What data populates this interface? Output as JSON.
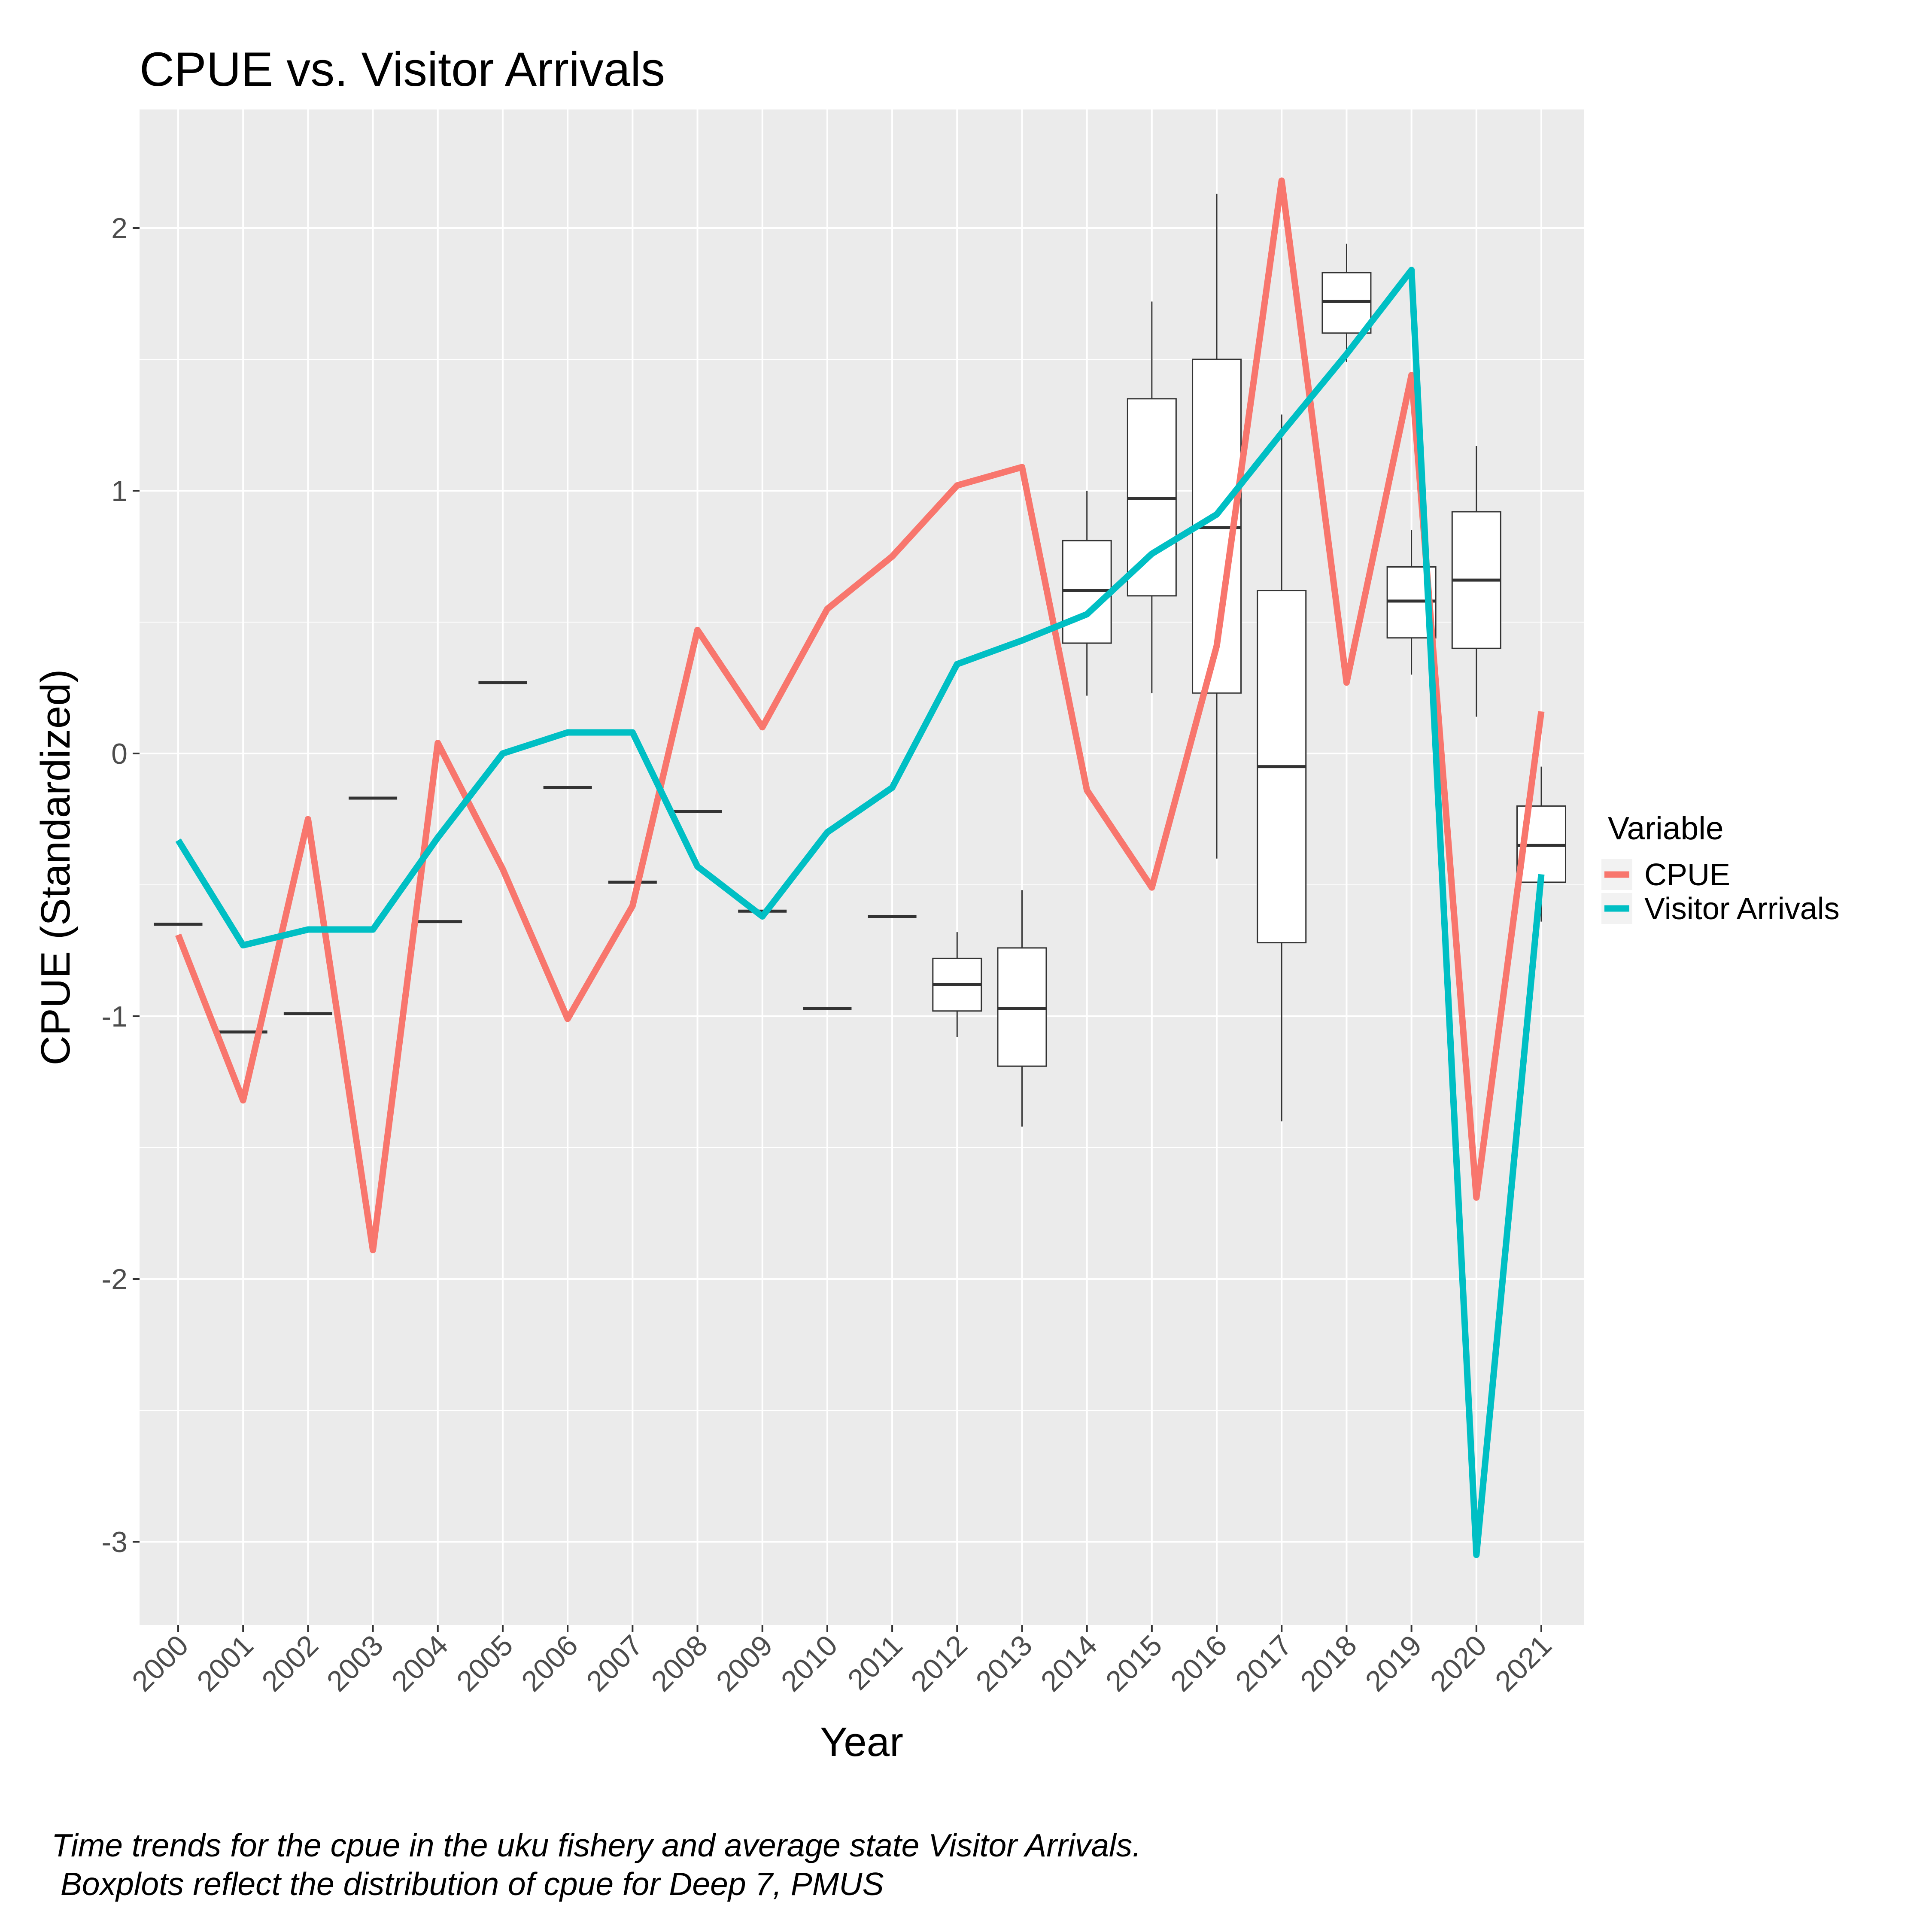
{
  "chart_data": {
    "type": "line",
    "title": "CPUE vs. Visitor Arrivals",
    "xlabel": "Year",
    "ylabel": "CPUE (Standardized)",
    "ylim": [
      -3.3,
      2.45
    ],
    "yticks": [
      "-3",
      "-2",
      "-1",
      "0",
      "1",
      "2"
    ],
    "grid": true,
    "legend_position": "right",
    "legend_title": "Variable",
    "categories": [
      "2000",
      "2001",
      "2002",
      "2003",
      "2004",
      "2005",
      "2006",
      "2007",
      "2008",
      "2009",
      "2010",
      "2011",
      "2012",
      "2013",
      "2014",
      "2015",
      "2016",
      "2017",
      "2018",
      "2019",
      "2020",
      "2021"
    ],
    "series": [
      {
        "name": "CPUE",
        "color": "#F8766D",
        "values": [
          -0.69,
          -1.32,
          -0.25,
          -1.89,
          0.04,
          -0.44,
          -1.01,
          -0.58,
          0.47,
          0.1,
          0.55,
          0.75,
          1.02,
          1.09,
          -0.14,
          -0.51,
          0.41,
          2.18,
          0.27,
          1.44,
          -1.69,
          0.16
        ]
      },
      {
        "name": "Visitor Arrivals",
        "color": "#00BFC4",
        "values": [
          -0.33,
          -0.73,
          -0.67,
          -0.67,
          -0.32,
          0.0,
          0.08,
          0.08,
          -0.43,
          -0.62,
          -0.3,
          -0.13,
          0.34,
          0.43,
          0.53,
          0.76,
          0.91,
          1.22,
          1.52,
          1.84,
          -3.05,
          -0.46
        ]
      }
    ],
    "boxplots": [
      {
        "year": "2000",
        "median": -0.65
      },
      {
        "year": "2001",
        "median": -1.06
      },
      {
        "year": "2002",
        "median": -0.99
      },
      {
        "year": "2003",
        "median": -0.17
      },
      {
        "year": "2004",
        "median": -0.64
      },
      {
        "year": "2005",
        "median": 0.27
      },
      {
        "year": "2006",
        "median": -0.13
      },
      {
        "year": "2007",
        "median": -0.49
      },
      {
        "year": "2008",
        "median": -0.22
      },
      {
        "year": "2009",
        "median": -0.6
      },
      {
        "year": "2010",
        "median": -0.97
      },
      {
        "year": "2011",
        "median": -0.62
      },
      {
        "year": "2012",
        "min": -1.08,
        "q1": -0.98,
        "median": -0.88,
        "q3": -0.78,
        "max": -0.68
      },
      {
        "year": "2013",
        "min": -1.42,
        "q1": -1.19,
        "median": -0.97,
        "q3": -0.74,
        "max": -0.52
      },
      {
        "year": "2014",
        "min": 0.22,
        "q1": 0.42,
        "median": 0.62,
        "q3": 0.81,
        "max": 1.0
      },
      {
        "year": "2015",
        "min": 0.23,
        "q1": 0.6,
        "median": 0.97,
        "q3": 1.35,
        "max": 1.72
      },
      {
        "year": "2016",
        "min": -0.4,
        "q1": 0.23,
        "median": 0.86,
        "q3": 1.5,
        "max": 2.13
      },
      {
        "year": "2017",
        "min": -1.4,
        "q1": -0.72,
        "median": -0.05,
        "q3": 0.62,
        "max": 1.29
      },
      {
        "year": "2018",
        "min": 1.49,
        "q1": 1.6,
        "median": 1.72,
        "q3": 1.83,
        "max": 1.94
      },
      {
        "year": "2019",
        "min": 0.3,
        "q1": 0.44,
        "median": 0.58,
        "q3": 0.71,
        "max": 0.85
      },
      {
        "year": "2020",
        "min": 0.14,
        "q1": 0.4,
        "median": 0.66,
        "q3": 0.92,
        "max": 1.17
      },
      {
        "year": "2021",
        "min": -0.64,
        "q1": -0.49,
        "median": -0.35,
        "q3": -0.2,
        "max": -0.05
      }
    ]
  },
  "caption": {
    "line1": "Time trends for the cpue in the uku fishery and average state Visitor Arrivals.",
    "line2": " Boxplots reflect the distribution of cpue for Deep 7, PMUS"
  }
}
